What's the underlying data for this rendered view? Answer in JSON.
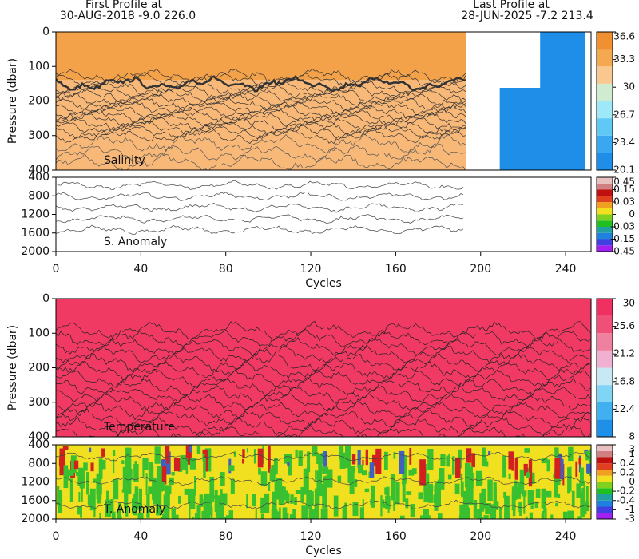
{
  "header": {
    "first_label": "First Profile at",
    "first_info": "30-AUG-2018   -9.0  226.0",
    "last_label": "Last Profile at",
    "last_info": "28-JUN-2025   -7.2  213.4"
  },
  "chart_data": [
    {
      "type": "heatmap",
      "label": "Salinity",
      "ylabel": "Pressure (dbar)",
      "xlim": [
        0,
        252
      ],
      "ylim": [
        0,
        400
      ],
      "yticks": [
        0,
        100,
        200,
        300,
        400
      ],
      "colorbar": {
        "ticks": [
          20.1,
          23.4,
          26.7,
          30,
          33.3,
          36.6
        ],
        "colors": [
          "#1e8ee8",
          "#3aa8f0",
          "#60c8f4",
          "#9ee8f8",
          "#d0ecd0",
          "#f8c890",
          "#f4a850",
          "#f09030"
        ]
      }
    },
    {
      "type": "heatmap",
      "label": "S. Anomaly",
      "xlabel": "Cycles",
      "xlim": [
        0,
        252
      ],
      "ylim": [
        400,
        2000
      ],
      "yticks": [
        400,
        800,
        1200,
        1600,
        2000
      ],
      "xticks": [
        0,
        40,
        80,
        120,
        160,
        200,
        240
      ],
      "colorbar": {
        "ticks": [
          -0.45,
          -0.15,
          -0.03,
          0,
          0.03,
          0.15,
          0.45
        ],
        "colors": [
          "#a020f0",
          "#4040e0",
          "#2080e0",
          "#20a0a0",
          "#20c020",
          "#80d020",
          "#f0e020",
          "#f0a020",
          "#e04020",
          "#c01010",
          "#d08080",
          "#e8c0c0"
        ]
      }
    },
    {
      "type": "heatmap",
      "label": "Temperature",
      "ylabel": "Pressure (dbar)",
      "xlim": [
        0,
        252
      ],
      "ylim": [
        0,
        400
      ],
      "yticks": [
        0,
        100,
        200,
        300,
        400
      ],
      "colorbar": {
        "ticks": [
          8,
          12.4,
          16.8,
          21.2,
          25.6,
          30
        ],
        "colors": [
          "#1e90e8",
          "#40b0f0",
          "#80d4f4",
          "#c8e8f4",
          "#f0b0d0",
          "#f080a0",
          "#f05078",
          "#f03060"
        ]
      }
    },
    {
      "type": "heatmap",
      "label": "T. Anomaly",
      "xlabel": "Cycles",
      "xlim": [
        0,
        252
      ],
      "ylim": [
        400,
        2000
      ],
      "yticks": [
        400,
        800,
        1200,
        1600,
        2000
      ],
      "xticks": [
        0,
        40,
        80,
        120,
        160,
        200,
        240
      ],
      "colorbar": {
        "ticks": [
          -3,
          -1,
          -0.4,
          -0.2,
          0,
          0.2,
          0.4,
          1,
          3
        ],
        "colors": [
          "#a020f0",
          "#4040e0",
          "#2080e0",
          "#20a0a0",
          "#20c020",
          "#80d020",
          "#f0e020",
          "#f0a020",
          "#e04020",
          "#c01010",
          "#d08080",
          "#e8c0c0"
        ]
      }
    }
  ]
}
